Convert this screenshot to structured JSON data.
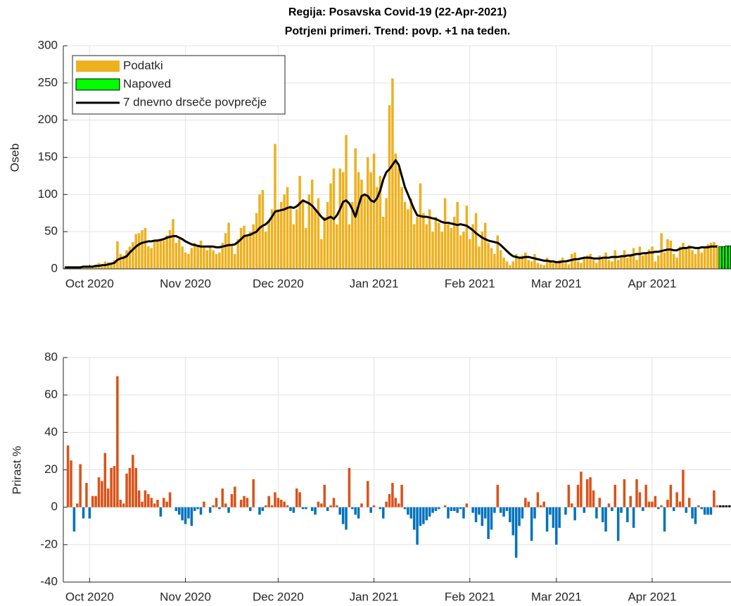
{
  "chart_data": [
    {
      "type": "bar",
      "title": "Regija: Posavska Covid-19 (22-Apr-2021)",
      "subtitle": "Potrjeni primeri. Trend: povp. +1 na teden.",
      "ylabel": "Oseb",
      "legend": "northwest",
      "grid": true,
      "xlim": [
        -8.5,
        207.5
      ],
      "xticks": [
        {
          "value": 0,
          "label": "Oct 2020"
        },
        {
          "value": 31,
          "label": "Nov 2020"
        },
        {
          "value": 61,
          "label": "Dec 2020"
        },
        {
          "value": 92,
          "label": "Jan 2021"
        },
        {
          "value": 123,
          "label": "Feb 2021"
        },
        {
          "value": 151,
          "label": "Mar 2021"
        },
        {
          "value": 182,
          "label": "Apr 2021"
        }
      ],
      "ylim": [
        0,
        300
      ],
      "yticks": [
        0,
        50,
        100,
        150,
        200,
        250,
        300
      ],
      "x": [
        -8,
        -7,
        -6,
        -5,
        -4,
        -3,
        -2,
        -1,
        0,
        1,
        2,
        3,
        4,
        5,
        6,
        7,
        8,
        9,
        10,
        11,
        12,
        13,
        14,
        15,
        16,
        17,
        18,
        19,
        20,
        21,
        22,
        23,
        24,
        25,
        26,
        27,
        28,
        29,
        30,
        31,
        32,
        33,
        34,
        35,
        36,
        37,
        38,
        39,
        40,
        41,
        42,
        43,
        44,
        45,
        46,
        47,
        48,
        49,
        50,
        51,
        52,
        53,
        54,
        55,
        56,
        57,
        58,
        59,
        60,
        61,
        62,
        63,
        64,
        65,
        66,
        67,
        68,
        69,
        70,
        71,
        72,
        73,
        74,
        75,
        76,
        77,
        78,
        79,
        80,
        81,
        82,
        83,
        84,
        85,
        86,
        87,
        88,
        89,
        90,
        91,
        92,
        93,
        94,
        95,
        96,
        97,
        98,
        99,
        100,
        101,
        102,
        103,
        104,
        105,
        106,
        107,
        108,
        109,
        110,
        111,
        112,
        113,
        114,
        115,
        116,
        117,
        118,
        119,
        120,
        121,
        122,
        123,
        124,
        125,
        126,
        127,
        128,
        129,
        130,
        131,
        132,
        133,
        134,
        135,
        136,
        137,
        138,
        139,
        140,
        141,
        142,
        143,
        144,
        145,
        146,
        147,
        148,
        149,
        150,
        151,
        152,
        153,
        154,
        155,
        156,
        157,
        158,
        159,
        160,
        161,
        162,
        163,
        164,
        165,
        166,
        167,
        168,
        169,
        170,
        171,
        172,
        173,
        174,
        175,
        176,
        177,
        178,
        179,
        180,
        181,
        182,
        183,
        184,
        185,
        186,
        187,
        188,
        189,
        190,
        191,
        192,
        193,
        194,
        195,
        196,
        197,
        198,
        199,
        200,
        201,
        202,
        203
      ],
      "series": [
        {
          "name": "Podatki",
          "color": "#EDB120",
          "values": [
            2,
            2,
            3,
            2,
            3,
            3,
            2,
            3,
            4,
            3,
            5,
            8,
            6,
            10,
            9,
            6,
            12,
            37,
            20,
            18,
            25,
            30,
            36,
            47,
            48,
            52,
            55,
            30,
            28,
            38,
            40,
            40,
            38,
            45,
            52,
            67,
            35,
            40,
            30,
            22,
            20,
            28,
            35,
            30,
            38,
            30,
            25,
            30,
            25,
            20,
            22,
            35,
            48,
            62,
            30,
            20,
            40,
            55,
            58,
            45,
            50,
            60,
            75,
            100,
            106,
            50,
            65,
            80,
            168,
            80,
            90,
            100,
            110,
            85,
            60,
            80,
            125,
            90,
            55,
            100,
            120,
            80,
            95,
            40,
            70,
            90,
            115,
            135,
            60,
            135,
            130,
            180,
            60,
            90,
            162,
            130,
            120,
            100,
            150,
            130,
            155,
            110,
            125,
            70,
            95,
            220,
            256,
            155,
            135,
            110,
            90,
            80,
            95,
            60,
            70,
            115,
            75,
            60,
            80,
            50,
            70,
            62,
            50,
            95,
            60,
            55,
            70,
            90,
            45,
            50,
            85,
            40,
            60,
            75,
            30,
            50,
            62,
            35,
            28,
            20,
            45,
            25,
            15,
            10,
            5,
            10,
            20,
            15,
            18,
            22,
            12,
            10,
            20,
            8,
            6,
            5,
            15,
            12,
            8,
            10,
            12,
            15,
            8,
            6,
            20,
            22,
            10,
            8,
            15,
            18,
            20,
            12,
            8,
            18,
            15,
            22,
            12,
            10,
            25,
            12,
            18,
            25,
            15,
            20,
            28,
            12,
            30,
            18,
            22,
            26,
            30,
            10,
            18,
            48,
            22,
            40,
            38,
            20,
            15,
            30,
            35,
            28,
            32,
            25,
            20,
            28,
            22,
            30,
            33,
            35,
            36,
            32
          ]
        },
        {
          "name": "Napoved",
          "color": "#00FF00",
          "x": [
            204,
            205,
            206,
            207
          ],
          "values": [
            30,
            30,
            31,
            31
          ]
        },
        {
          "name": "7 dnevno drseče povprečje",
          "type": "line",
          "color": "#000000",
          "values": [
            2,
            2,
            2,
            2,
            2,
            2,
            3,
            3,
            3,
            3,
            4,
            4,
            5,
            5,
            6,
            7,
            8,
            12,
            14,
            15,
            17,
            22,
            26,
            30,
            33,
            35,
            36,
            37,
            37,
            38,
            38,
            39,
            40,
            42,
            43,
            44,
            44,
            42,
            40,
            37,
            35,
            33,
            32,
            31,
            30,
            30,
            30,
            30,
            30,
            29,
            29,
            30,
            31,
            32,
            32,
            33,
            36,
            40,
            44,
            45,
            46,
            48,
            50,
            55,
            58,
            60,
            64,
            70,
            77,
            78,
            79,
            80,
            82,
            83,
            82,
            84,
            88,
            92,
            90,
            88,
            85,
            80,
            75,
            70,
            66,
            68,
            70,
            67,
            72,
            80,
            90,
            92,
            88,
            80,
            70,
            85,
            98,
            100,
            98,
            92,
            90,
            95,
            105,
            120,
            130,
            134,
            140,
            146,
            140,
            125,
            110,
            100,
            90,
            80,
            72,
            71,
            70,
            70,
            69,
            68,
            67,
            65,
            63,
            62,
            62,
            61,
            60,
            59,
            60,
            59,
            58,
            55,
            52,
            48,
            45,
            42,
            40,
            38,
            37,
            36,
            35,
            32,
            28,
            24,
            20,
            17,
            16,
            15,
            15,
            16,
            16,
            15,
            14,
            13,
            12,
            11,
            11,
            10,
            10,
            9,
            9,
            10,
            10,
            11,
            12,
            13,
            13,
            14,
            15,
            15,
            15,
            14,
            14,
            14,
            15,
            15,
            15,
            16,
            16,
            16,
            17,
            17,
            18,
            18,
            19,
            20,
            20,
            21,
            21,
            22,
            22,
            23,
            23,
            24,
            25,
            26,
            26,
            25,
            25,
            27,
            28,
            28,
            29,
            29,
            28,
            28,
            29,
            29,
            29,
            30,
            30,
            30
          ]
        }
      ]
    },
    {
      "type": "bar",
      "ylabel": "Prirast %",
      "grid": true,
      "positive_color": "#D95319",
      "negative_color": "#0072BD",
      "xlim": [
        -8.5,
        207.5
      ],
      "xticks": [
        {
          "value": 0,
          "label": "Oct 2020"
        },
        {
          "value": 31,
          "label": "Nov 2020"
        },
        {
          "value": 61,
          "label": "Dec 2020"
        },
        {
          "value": 92,
          "label": "Jan 2021"
        },
        {
          "value": 123,
          "label": "Feb 2021"
        },
        {
          "value": 151,
          "label": "Mar 2021"
        },
        {
          "value": 182,
          "label": "Apr 2021"
        }
      ],
      "ylim": [
        -40,
        80
      ],
      "yticks": [
        -40,
        -20,
        0,
        20,
        40,
        60,
        80
      ],
      "x": [
        -8,
        -7,
        -6,
        -5,
        -4,
        -3,
        -2,
        -1,
        0,
        1,
        2,
        3,
        4,
        5,
        6,
        7,
        8,
        9,
        10,
        11,
        12,
        13,
        14,
        15,
        16,
        17,
        18,
        19,
        20,
        21,
        22,
        23,
        24,
        25,
        26,
        27,
        28,
        29,
        30,
        31,
        32,
        33,
        34,
        35,
        36,
        37,
        38,
        39,
        40,
        41,
        42,
        43,
        44,
        45,
        46,
        47,
        48,
        49,
        50,
        51,
        52,
        53,
        54,
        55,
        56,
        57,
        58,
        59,
        60,
        61,
        62,
        63,
        64,
        65,
        66,
        67,
        68,
        69,
        70,
        71,
        72,
        73,
        74,
        75,
        76,
        77,
        78,
        79,
        80,
        81,
        82,
        83,
        84,
        85,
        86,
        87,
        88,
        89,
        90,
        91,
        92,
        93,
        94,
        95,
        96,
        97,
        98,
        99,
        100,
        101,
        102,
        103,
        104,
        105,
        106,
        107,
        108,
        109,
        110,
        111,
        112,
        113,
        114,
        115,
        116,
        117,
        118,
        119,
        120,
        121,
        122,
        123,
        124,
        125,
        126,
        127,
        128,
        129,
        130,
        131,
        132,
        133,
        134,
        135,
        136,
        137,
        138,
        139,
        140,
        141,
        142,
        143,
        144,
        145,
        146,
        147,
        148,
        149,
        150,
        151,
        152,
        153,
        154,
        155,
        156,
        157,
        158,
        159,
        160,
        161,
        162,
        163,
        164,
        165,
        166,
        167,
        168,
        169,
        170,
        171,
        172,
        173,
        174,
        175,
        176,
        177,
        178,
        179,
        180,
        181,
        182,
        183,
        184,
        185,
        186,
        187,
        188,
        189,
        190,
        191,
        192,
        193,
        194,
        195,
        196,
        197,
        198,
        199,
        200,
        201,
        202,
        203
      ],
      "values": [
        null,
        33,
        25,
        -13,
        2,
        23,
        -6,
        13,
        -6,
        6,
        6,
        16,
        14,
        29,
        10,
        21,
        22,
        70,
        4,
        2,
        18,
        21,
        28,
        21,
        9,
        3,
        9,
        7,
        5,
        2,
        4,
        -5,
        5,
        3,
        8,
        0,
        -2,
        -4,
        -7,
        -9,
        -6,
        -10,
        -2,
        -1,
        -4,
        3,
        0,
        -3,
        1,
        5,
        -1,
        10,
        2,
        -3,
        7,
        11,
        0,
        4,
        6,
        5,
        -2,
        15,
        0,
        -4,
        -2,
        1,
        6,
        1,
        8,
        5,
        4,
        3,
        1,
        -2,
        -3,
        10,
        8,
        -1,
        -1,
        0,
        -2,
        -4,
        3,
        2,
        12,
        -2,
        1,
        5,
        1,
        -4,
        -9,
        -12,
        21,
        -1,
        -4,
        -6,
        2,
        0,
        14,
        -3,
        1,
        0,
        -1,
        -6,
        3,
        7,
        13,
        5,
        2,
        12,
        -1,
        -4,
        -6,
        -12,
        -20,
        -10,
        -9,
        -7,
        -5,
        -3,
        -2,
        -1,
        0,
        1,
        -6,
        -2,
        -2,
        -3,
        -1,
        -6,
        2,
        0,
        -3,
        -8,
        -4,
        -10,
        -6,
        -17,
        -12,
        -3,
        12,
        -3,
        -5,
        -2,
        -8,
        -15,
        -27,
        -10,
        -6,
        5,
        3,
        -18,
        -6,
        8,
        1,
        3,
        -13,
        -4,
        -11,
        -20,
        -11,
        0,
        -4,
        12,
        2,
        -7,
        12,
        19,
        -3,
        15,
        16,
        9,
        -6,
        5,
        -8,
        -13,
        2,
        -2,
        12,
        -18,
        -3,
        15,
        -8,
        6,
        -11,
        15,
        8,
        -2,
        12,
        3,
        3,
        6,
        -1,
        1,
        -13,
        4,
        12,
        -2,
        8,
        3,
        20,
        -3,
        5,
        -6,
        -9,
        1,
        -1,
        -4,
        -4,
        -4,
        9,
        1
      ],
      "forecast": {
        "color": "#000000",
        "x": [
          204,
          205,
          206,
          207
        ],
        "values": [
          1,
          1,
          1,
          1
        ]
      }
    }
  ]
}
